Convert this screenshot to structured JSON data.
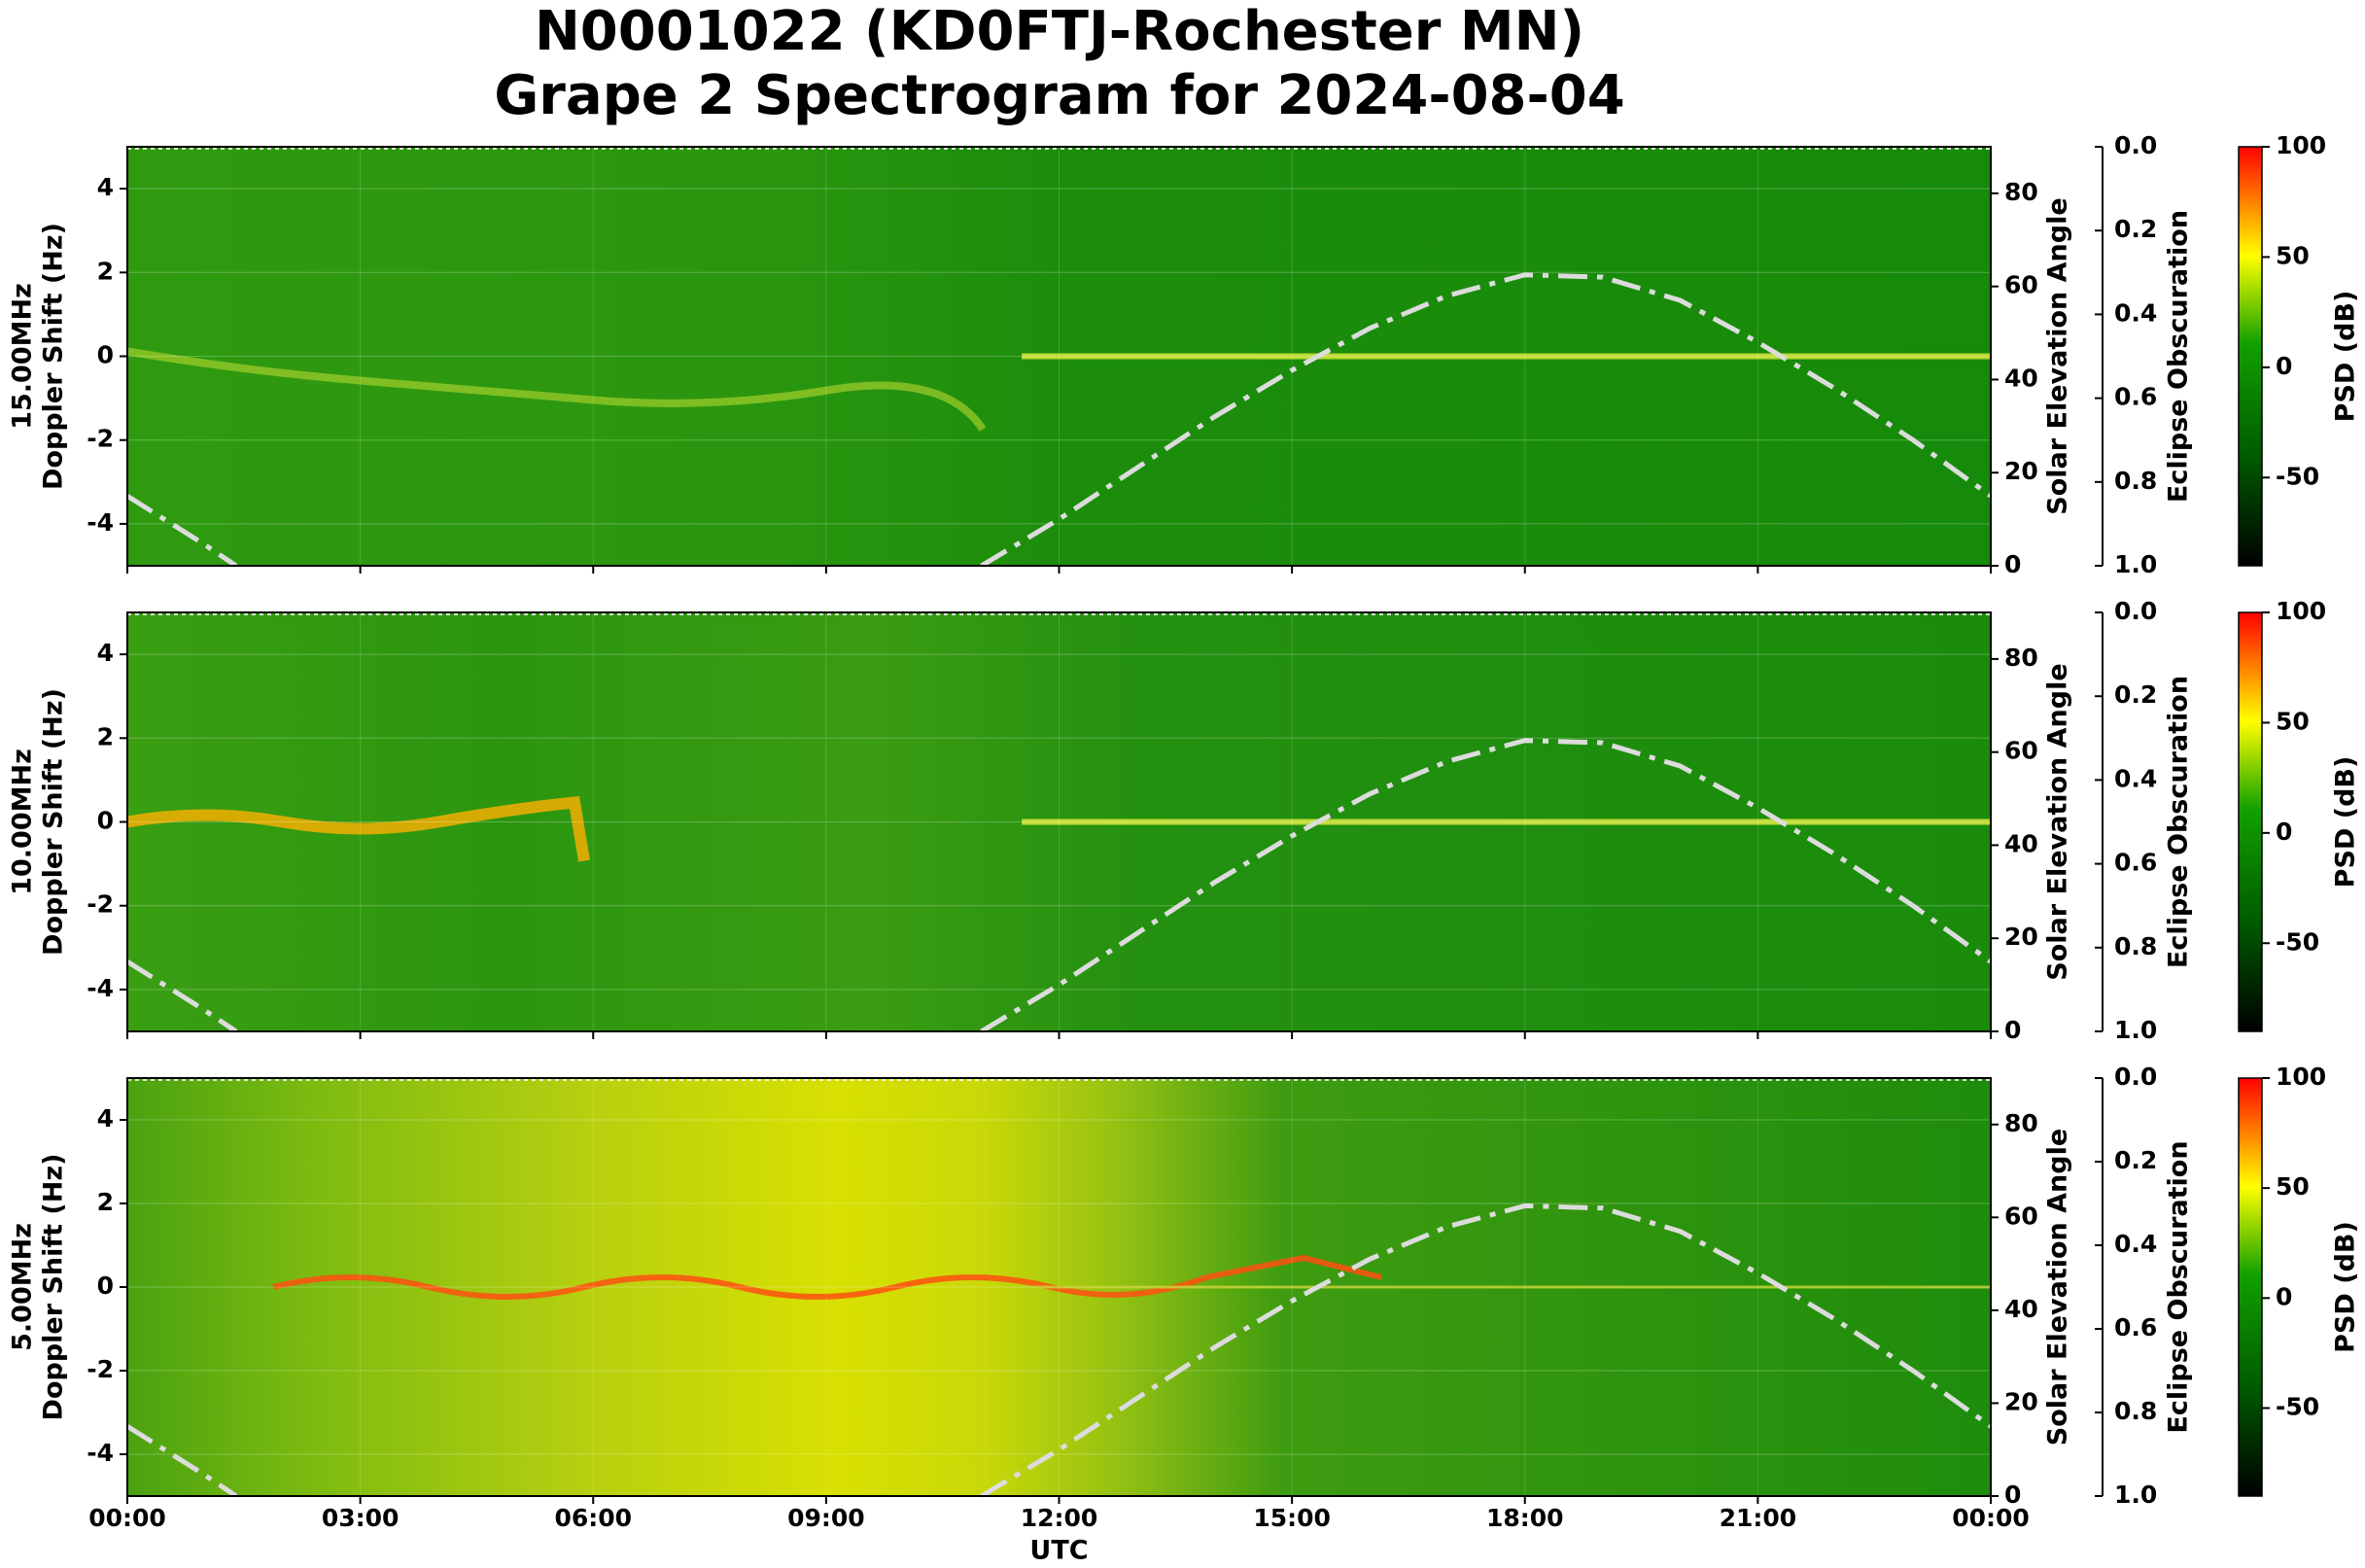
{
  "chart_data": {
    "type": "spectrogram",
    "title": [
      "N0001022 (KD0FTJ-Rochester MN)",
      "Grape 2 Spectrogram for 2024-08-04"
    ],
    "panels": [
      "15.00MHz",
      "10.00MHz",
      "5.00MHz"
    ],
    "xlabel": "UTC",
    "xlim": [
      0,
      24
    ],
    "xticks": [
      {
        "value": 0,
        "label": "00:00"
      },
      {
        "value": 3,
        "label": "03:00"
      },
      {
        "value": 6,
        "label": "06:00"
      },
      {
        "value": 9,
        "label": "09:00"
      },
      {
        "value": 12,
        "label": "12:00"
      },
      {
        "value": 15,
        "label": "15:00"
      },
      {
        "value": 18,
        "label": "18:00"
      },
      {
        "value": 21,
        "label": "21:00"
      },
      {
        "value": 24,
        "label": "00:00"
      }
    ],
    "ylabel": "Doppler Shift (Hz)",
    "ylim": [
      -5,
      5
    ],
    "yticks": [
      -4,
      -2,
      0,
      2,
      4
    ],
    "y2label": "Solar Elevation Angle",
    "y2lim": [
      0,
      90
    ],
    "y2ticks": [
      0,
      20,
      40,
      60,
      80
    ],
    "eclipse_label": "Eclipse Obscuration",
    "eclipse_lim": [
      0,
      1
    ],
    "eclipse_ticks": [
      {
        "value": 0,
        "label": "0.0"
      },
      0.2,
      0.4,
      0.6,
      0.8,
      {
        "value": 1,
        "label": "1.0"
      }
    ],
    "colorbar_label": "PSD (dB)",
    "clim": [
      -90,
      100
    ],
    "cticks": [
      -50,
      0,
      50,
      100
    ],
    "grid": true,
    "solar_elevation": {
      "axis": "y2",
      "color": "#dcdcdc",
      "x": [
        0,
        1,
        1.4,
        2,
        11,
        12,
        13,
        14,
        15,
        16,
        17,
        18,
        19,
        20,
        21,
        22,
        23,
        24
      ],
      "values": [
        15,
        4.5,
        0,
        null,
        0,
        10,
        21,
        32,
        42,
        51,
        58,
        62.5,
        62,
        57,
        48,
        38,
        27,
        15
      ]
    }
  }
}
